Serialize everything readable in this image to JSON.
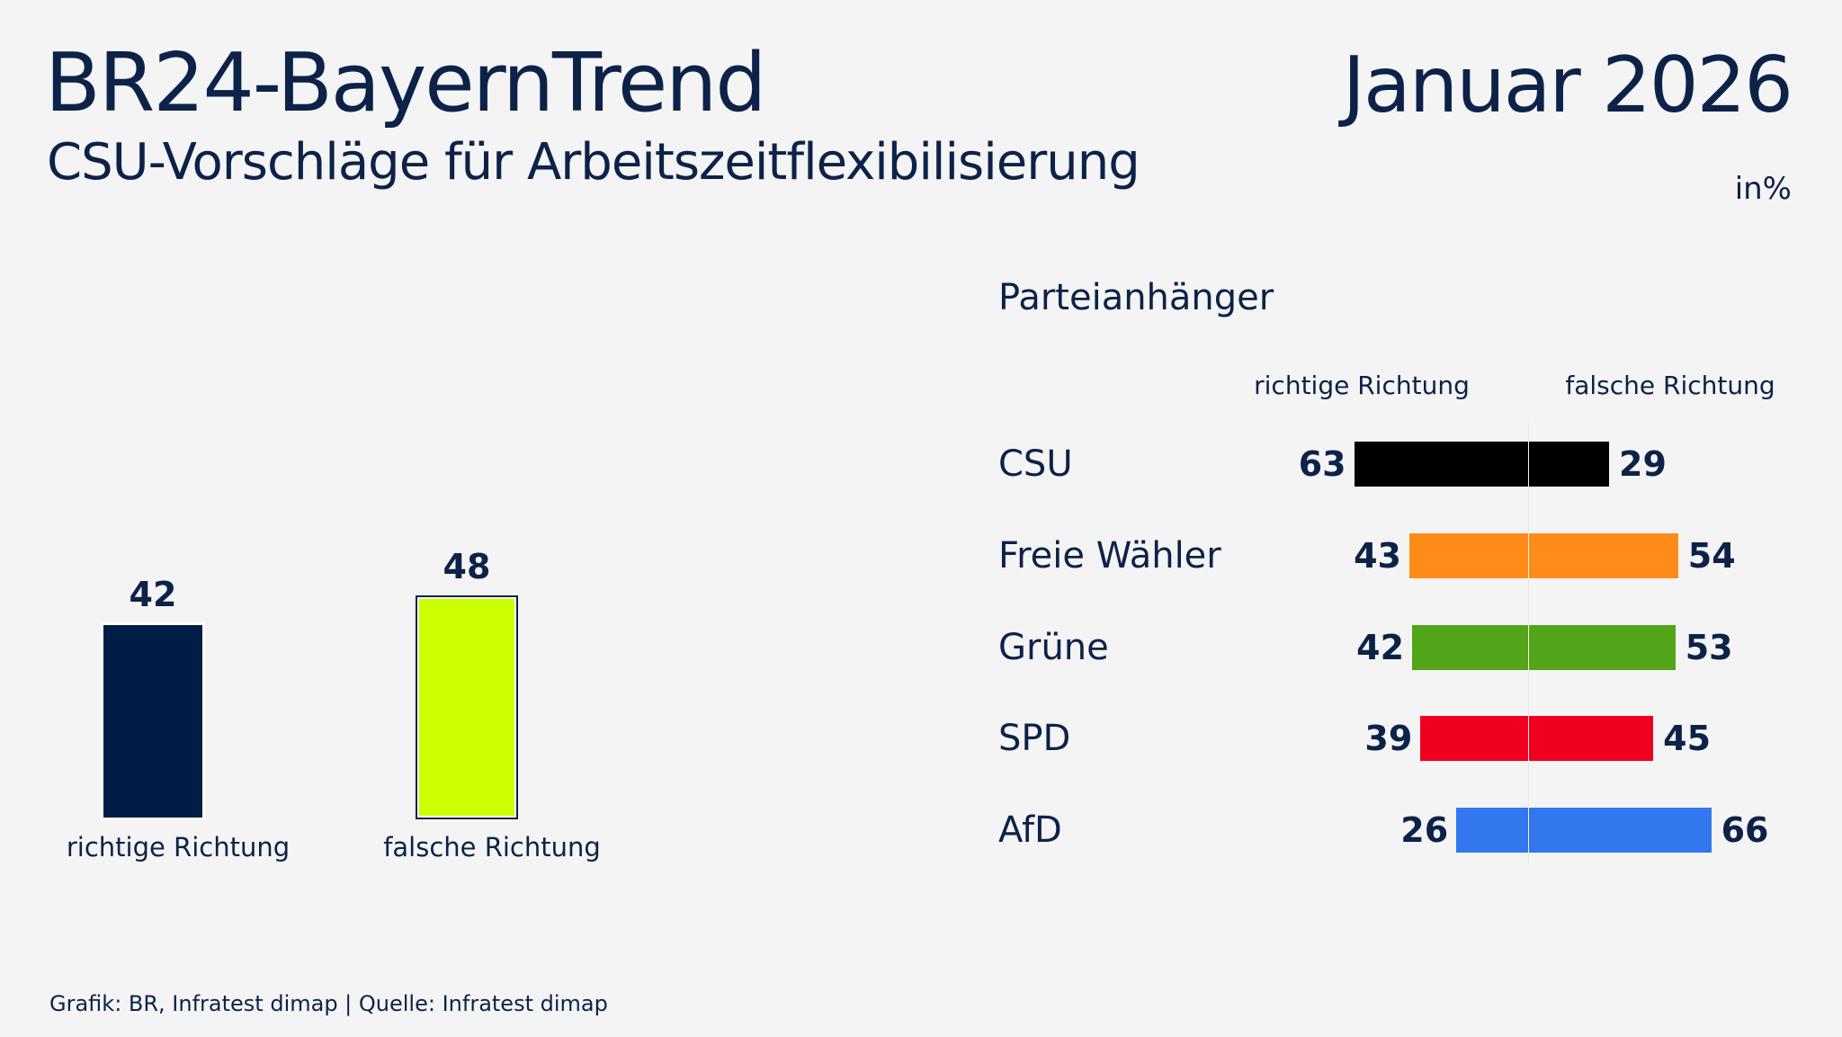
{
  "header": {
    "title": "BR24-BayernTrend",
    "subtitle": "CSU-Vorschläge für Arbeitszeitflexibilisierung",
    "date": "Januar 2026",
    "unit": "in%"
  },
  "chart_data": [
    {
      "type": "bar",
      "categories": [
        "richtige Richtung",
        "falsche Richtung"
      ],
      "values": [
        42,
        48
      ],
      "colors": [
        "#001e45",
        "#ccff00"
      ]
    },
    {
      "type": "bar",
      "orientation": "diverging-horizontal",
      "title": "Parteianhänger",
      "column_headers": [
        "richtige Richtung",
        "falsche Richtung"
      ],
      "categories": [
        "CSU",
        "Freie Wähler",
        "Grüne",
        "SPD",
        "AfD"
      ],
      "series": [
        {
          "name": "richtige Richtung",
          "values": [
            63,
            43,
            42,
            39,
            26
          ]
        },
        {
          "name": "falsche Richtung",
          "values": [
            29,
            54,
            53,
            45,
            66
          ]
        }
      ],
      "colors": [
        "#000000",
        "#ff8c19",
        "#52a518",
        "#f0001e",
        "#3377ee"
      ]
    }
  ],
  "footer": "Grafik: BR, Infratest dimap | Quelle: Infratest dimap"
}
